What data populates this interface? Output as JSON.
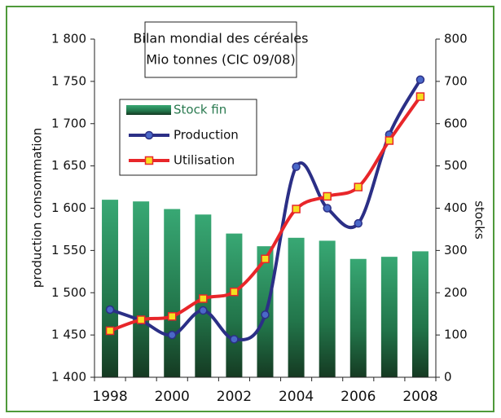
{
  "chart_data": {
    "type": "bar-line",
    "title": "Bilan mondial des céréales",
    "subtitle": "Mio tonnes (CIC 09/08)",
    "y_label": "production consommation",
    "y2_label": "stocks",
    "categories": [
      "1998",
      null,
      "2000",
      null,
      "2002",
      null,
      "2004",
      null,
      "2006",
      null,
      "2008"
    ],
    "ylim": [
      1400,
      1800
    ],
    "yticks": [
      {
        "value": 1400,
        "label": "1 400"
      },
      {
        "value": 1450,
        "label": "1 450"
      },
      {
        "value": 1500,
        "label": "1 500"
      },
      {
        "value": 1550,
        "label": "1 550"
      },
      {
        "value": 1600,
        "label": "1 600"
      },
      {
        "value": 1650,
        "label": "1 650"
      },
      {
        "value": 1700,
        "label": "1 700"
      },
      {
        "value": 1750,
        "label": "1 750"
      },
      {
        "value": 1800,
        "label": "1 800"
      }
    ],
    "y2lim": [
      0,
      800
    ],
    "y2ticks": [
      0,
      100,
      200,
      300,
      400,
      500,
      600,
      700,
      800
    ],
    "series": [
      {
        "name": "Stock fin",
        "kind": "bar",
        "axis": "y2",
        "color": "#2e9a66",
        "values": [
          420,
          416,
          398,
          385,
          340,
          310,
          330,
          323,
          280,
          285,
          298
        ]
      },
      {
        "name": "Production",
        "kind": "line",
        "color": "#2b2f86",
        "marker_color": "#4a68c8",
        "values": [
          1480,
          1467,
          1450,
          1479,
          1445,
          1474,
          1649,
          1600,
          1582,
          1687,
          1752
        ]
      },
      {
        "name": "Utilisation",
        "kind": "line",
        "color": "#e8262a",
        "marker_color": "#f5e020",
        "values": [
          1455,
          1468,
          1472,
          1493,
          1501,
          1540,
          1599,
          1614,
          1625,
          1680,
          1732
        ]
      }
    ]
  }
}
